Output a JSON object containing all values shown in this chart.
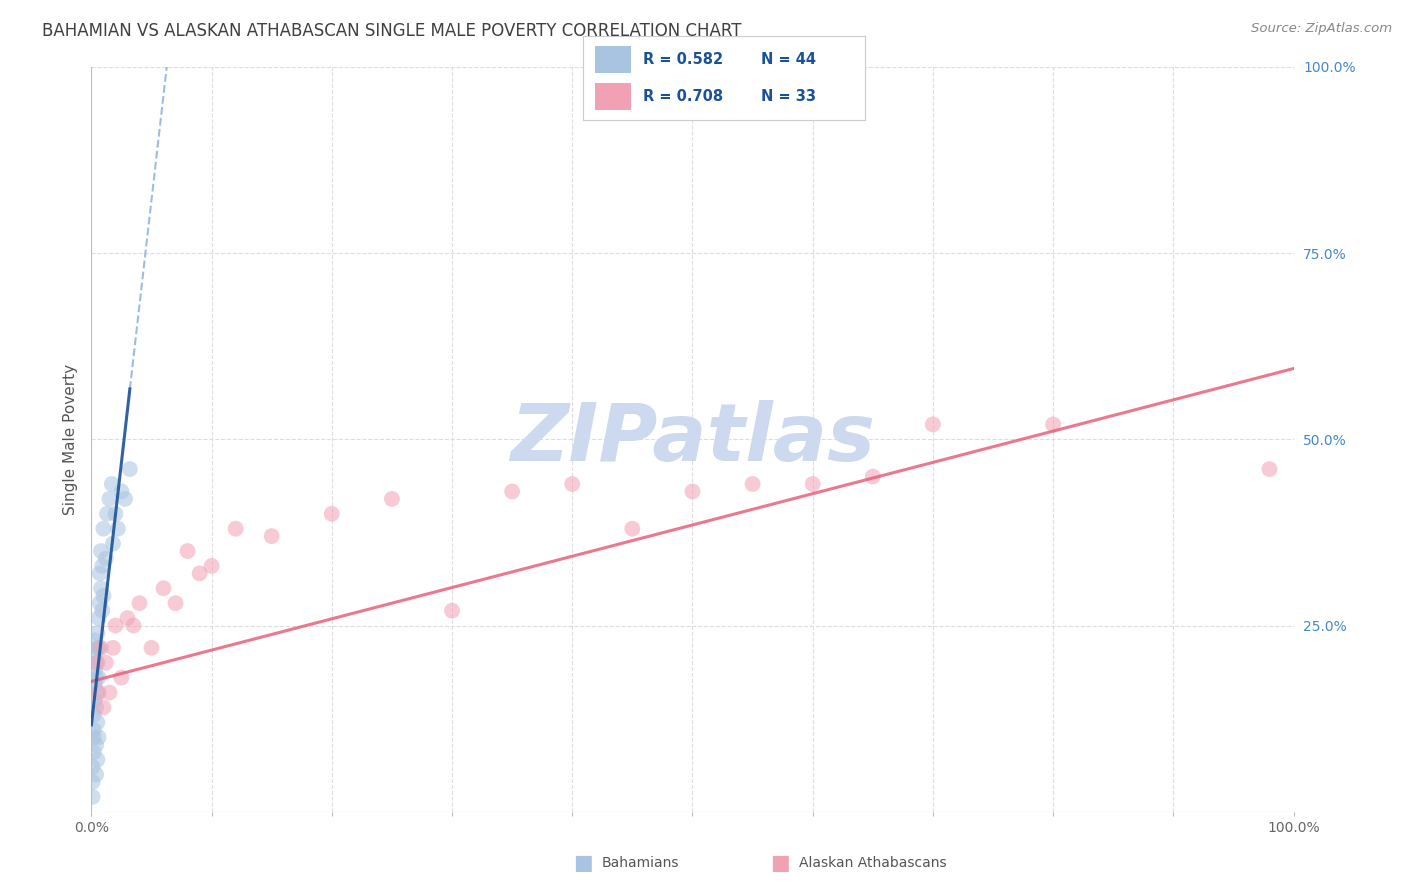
{
  "title": "BAHAMIAN VS ALASKAN ATHABASCAN SINGLE MALE POVERTY CORRELATION CHART",
  "source": "Source: ZipAtlas.com",
  "ylabel": "Single Male Poverty",
  "xlim": [
    0,
    1.0
  ],
  "ylim": [
    0,
    1.0
  ],
  "bahamian_R": "0.582",
  "bahamian_N": "44",
  "athabascan_R": "0.708",
  "athabascan_N": "33",
  "bahamian_color": "#a8c4e0",
  "athabascan_color": "#f2a0b4",
  "blue_line_color": "#1a5296",
  "pink_line_color": "#e8607a",
  "dashed_line_color": "#88aadd",
  "watermark_color": "#ccd9ee",
  "grid_color": "#dddddd",
  "title_color": "#404040",
  "legend_text_color": "#1a5296",
  "right_axis_color": "#4488cc",
  "bahamian_x": [
    0.001,
    0.001,
    0.001,
    0.002,
    0.002,
    0.002,
    0.002,
    0.003,
    0.003,
    0.003,
    0.003,
    0.003,
    0.004,
    0.004,
    0.004,
    0.004,
    0.005,
    0.005,
    0.005,
    0.005,
    0.005,
    0.005,
    0.006,
    0.006,
    0.006,
    0.006,
    0.007,
    0.007,
    0.008,
    0.008,
    0.009,
    0.009,
    0.01,
    0.01,
    0.012,
    0.013,
    0.015,
    0.017,
    0.018,
    0.02,
    0.022,
    0.025,
    0.028,
    0.032
  ],
  "bahamian_y": [
    0.02,
    0.04,
    0.06,
    0.08,
    0.1,
    0.11,
    0.13,
    0.15,
    0.17,
    0.19,
    0.21,
    0.23,
    0.05,
    0.09,
    0.14,
    0.18,
    0.07,
    0.12,
    0.16,
    0.2,
    0.22,
    0.24,
    0.1,
    0.18,
    0.22,
    0.26,
    0.28,
    0.32,
    0.3,
    0.35,
    0.27,
    0.33,
    0.29,
    0.38,
    0.34,
    0.4,
    0.42,
    0.44,
    0.36,
    0.4,
    0.38,
    0.43,
    0.42,
    0.46
  ],
  "athabascan_x": [
    0.004,
    0.006,
    0.008,
    0.01,
    0.012,
    0.015,
    0.018,
    0.02,
    0.025,
    0.03,
    0.035,
    0.04,
    0.05,
    0.06,
    0.07,
    0.08,
    0.09,
    0.1,
    0.12,
    0.15,
    0.2,
    0.25,
    0.3,
    0.35,
    0.4,
    0.45,
    0.5,
    0.55,
    0.6,
    0.65,
    0.7,
    0.8,
    0.98
  ],
  "athabascan_y": [
    0.2,
    0.16,
    0.22,
    0.14,
    0.2,
    0.16,
    0.22,
    0.25,
    0.18,
    0.26,
    0.25,
    0.28,
    0.22,
    0.3,
    0.28,
    0.35,
    0.32,
    0.33,
    0.38,
    0.37,
    0.4,
    0.42,
    0.27,
    0.43,
    0.44,
    0.38,
    0.43,
    0.44,
    0.44,
    0.45,
    0.52,
    0.52,
    0.46
  ],
  "marker_size": 130,
  "marker_alpha": 0.55,
  "marker_lw": 0.0
}
